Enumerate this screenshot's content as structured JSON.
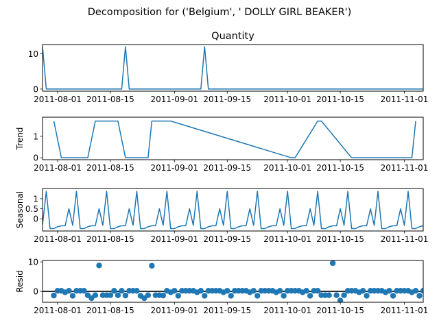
{
  "figure": {
    "suptitle": "Decomposition for ('Belgium', ' DOLLY GIRL BEAKER')"
  },
  "chart_data": [
    {
      "type": "line",
      "name": "observed",
      "title": "Quantity",
      "ylabel": "",
      "xlim": [
        "2011-07-28",
        "2011-11-06"
      ],
      "ylim": [
        -0.6,
        12.6
      ],
      "yticks": [
        0,
        10
      ],
      "xticks": [
        "2011-08-01",
        "2011-08-15",
        "2011-09-01",
        "2011-09-15",
        "2011-10-01",
        "2011-10-15",
        "2011-11-01"
      ],
      "x_start": "2011-07-28",
      "values": [
        12,
        0,
        0,
        0,
        0,
        0,
        0,
        0,
        0,
        0,
        0,
        0,
        0,
        0,
        0,
        0,
        0,
        0,
        0,
        0,
        0,
        0,
        12,
        0,
        0,
        0,
        0,
        0,
        0,
        0,
        0,
        0,
        0,
        0,
        0,
        0,
        0,
        0,
        0,
        0,
        0,
        0,
        0,
        12,
        0,
        0,
        0,
        0,
        0,
        0,
        0,
        0,
        0,
        0,
        0,
        0,
        0,
        0,
        0,
        0,
        0,
        0,
        0,
        0,
        0,
        0,
        0,
        0,
        0,
        0,
        0,
        0,
        0,
        0,
        0,
        0,
        0,
        0,
        0,
        0,
        0,
        0,
        0,
        0,
        0,
        0,
        0,
        0,
        0,
        0,
        0,
        0,
        0,
        0,
        0,
        0,
        0,
        0,
        0,
        0,
        0,
        0,
        0,
        0,
        0,
        0,
        0,
        0,
        0,
        0,
        0,
        0,
        0,
        0,
        0,
        0,
        0,
        0,
        0,
        0,
        0,
        0,
        0,
        0,
        0,
        0,
        0,
        0,
        0,
        0,
        0,
        0,
        0,
        0,
        0,
        0,
        0,
        0,
        0,
        0,
        0,
        0,
        0,
        0,
        0,
        0,
        0,
        0,
        0,
        0,
        0,
        12,
        0
      ]
    },
    {
      "type": "line",
      "name": "trend",
      "title": "",
      "ylabel": "Trend",
      "xlim": [
        "2011-07-28",
        "2011-11-06"
      ],
      "ylim": [
        -0.09,
        1.89
      ],
      "yticks": [
        0,
        1
      ],
      "xticks": [
        "2011-08-01",
        "2011-08-15",
        "2011-09-01",
        "2011-09-15",
        "2011-10-01",
        "2011-10-15",
        "2011-11-01"
      ],
      "segments": [
        {
          "x": [
            "2011-07-31",
            "2011-08-02",
            "2011-08-09",
            "2011-08-11",
            "2011-08-17",
            "2011-08-19",
            "2011-08-25",
            "2011-08-26",
            "2011-08-31",
            "2011-10-02",
            "2011-10-03",
            "2011-10-09",
            "2011-10-10",
            "2011-10-18"
          ],
          "y": [
            1.71,
            0,
            0,
            1.71,
            1.71,
            0,
            0,
            1.71,
            1.71,
            0,
            0,
            1.71,
            1.71,
            0
          ]
        },
        {
          "x": [
            "2011-10-18",
            "2011-11-03",
            "2011-11-04"
          ],
          "y": [
            0,
            0,
            1.71
          ]
        }
      ]
    },
    {
      "type": "line",
      "name": "seasonal",
      "title": "",
      "ylabel": "Seasonal",
      "xlim": [
        "2011-07-28",
        "2011-11-06"
      ],
      "ylim": [
        -0.61,
        1.51
      ],
      "yticks": [
        -0.0,
        0.5,
        1.0
      ],
      "xticks": [
        "2011-08-01",
        "2011-08-15",
        "2011-09-01",
        "2011-09-15",
        "2011-10-01",
        "2011-10-15",
        "2011-11-01"
      ],
      "x_start": "2011-07-28",
      "period_values": [
        -0.3,
        1.37,
        -0.49,
        -0.49,
        -0.4,
        -0.35,
        -0.35,
        0.5,
        -0.33,
        1.37,
        -0.49,
        -0.49,
        -0.4,
        -0.35,
        -0.35,
        0.5,
        -0.33,
        1.37,
        -0.49,
        -0.49,
        -0.4,
        -0.35,
        -0.35,
        0.5,
        -0.33,
        1.37,
        -0.49,
        -0.49,
        -0.4,
        -0.35,
        -0.35,
        0.5,
        -0.33,
        1.37,
        -0.49,
        -0.49,
        -0.4,
        -0.35,
        -0.35,
        0.5,
        -0.33,
        1.37,
        -0.49,
        -0.49,
        -0.4,
        -0.35,
        -0.35,
        0.5,
        -0.33,
        1.37,
        -0.49,
        -0.49,
        -0.4,
        -0.35,
        -0.35,
        0.5,
        -0.33,
        1.37,
        -0.49,
        -0.49,
        -0.4,
        -0.35,
        -0.35,
        0.5,
        -0.33,
        1.37,
        -0.49,
        -0.49,
        -0.4,
        -0.35,
        -0.35,
        0.5,
        -0.33,
        1.37,
        -0.49,
        -0.49,
        -0.4,
        -0.35,
        -0.35,
        0.5,
        -0.33,
        1.37,
        -0.49,
        -0.49,
        -0.4,
        -0.35,
        -0.35,
        0.5,
        -0.33,
        1.37,
        -0.49,
        -0.49,
        -0.4,
        -0.35,
        -0.35,
        0.5,
        -0.33,
        1.37,
        -0.49,
        -0.49,
        -0.4,
        -0.35,
        -0.35,
        0.5,
        -0.33,
        1.37,
        -0.49,
        -0.49,
        -0.4,
        -0.35,
        -0.35,
        0.5,
        -0.33,
        1.37,
        -0.49,
        -0.49,
        -0.4,
        -0.35,
        -0.35,
        0.5,
        -0.33,
        1.37,
        -0.49,
        -0.49,
        -0.4,
        -0.35,
        -0.35,
        0.5,
        -0.33,
        1.37,
        -0.49,
        -0.49,
        -0.4,
        -0.35,
        -0.35,
        0.5,
        -0.33,
        1.37,
        -0.49,
        -0.49,
        -0.4,
        -0.35,
        -0.35,
        0.5,
        -0.33,
        1.37,
        -0.49,
        -0.49,
        -0.4,
        -0.35,
        -0.35
      ]
    },
    {
      "type": "scatter",
      "name": "resid",
      "title": "",
      "ylabel": "Resid",
      "xlim": [
        "2011-07-28",
        "2011-11-06"
      ],
      "ylim": [
        -3.7,
        10.5
      ],
      "yticks": [
        0,
        10
      ],
      "xticks": [
        "2011-08-01",
        "2011-08-15",
        "2011-09-01",
        "2011-09-15",
        "2011-10-01",
        "2011-10-15",
        "2011-11-01"
      ],
      "baseline": 0,
      "x_start": "2011-07-31",
      "values": [
        -1.4,
        0.2,
        0.2,
        -0.3,
        0.2,
        -1.5,
        0.2,
        0.2,
        0.2,
        -1.3,
        -2.3,
        -1.3,
        8.8,
        -1.3,
        -1.3,
        -1.3,
        0.2,
        -1.3,
        0.2,
        -1.4,
        0.2,
        0.2,
        0.2,
        -1.5,
        -2.3,
        -1.3,
        8.7,
        -1.3,
        -1.3,
        -1.4,
        0.2,
        -0.3,
        0.2,
        -1.5,
        0.2,
        0.2,
        0.2,
        0.2,
        -0.3,
        0.2,
        -1.5,
        0.2,
        0.2,
        0.2,
        0.2,
        -0.3,
        0.2,
        -1.5,
        0.2,
        0.2,
        0.2,
        0.2,
        -0.3,
        0.2,
        -1.5,
        0.2,
        0.2,
        0.2,
        0.2,
        -0.3,
        0.2,
        -1.5,
        0.2,
        0.2,
        0.2,
        0.2,
        -0.3,
        0.2,
        -1.5,
        0.2,
        0.2,
        -1.3,
        -1.3,
        -1.3,
        9.6,
        -1.3,
        -3.1,
        -1.3,
        0.2,
        0.2,
        0.2,
        -0.3,
        0.2,
        -1.5,
        0.2,
        0.2,
        0.2,
        0.2,
        -0.3,
        0.2,
        -1.5,
        0.2,
        0.2,
        0.2,
        0.2,
        -0.3,
        0.2,
        -1.5,
        0.2,
        0.2,
        0.2,
        0.2,
        -0.3,
        0.2,
        -1.5,
        -1.3
      ]
    }
  ],
  "colors": {
    "line": "#1f77b4",
    "marker": "#1f77b4",
    "baseline": "#000000",
    "axes": "#000000"
  }
}
